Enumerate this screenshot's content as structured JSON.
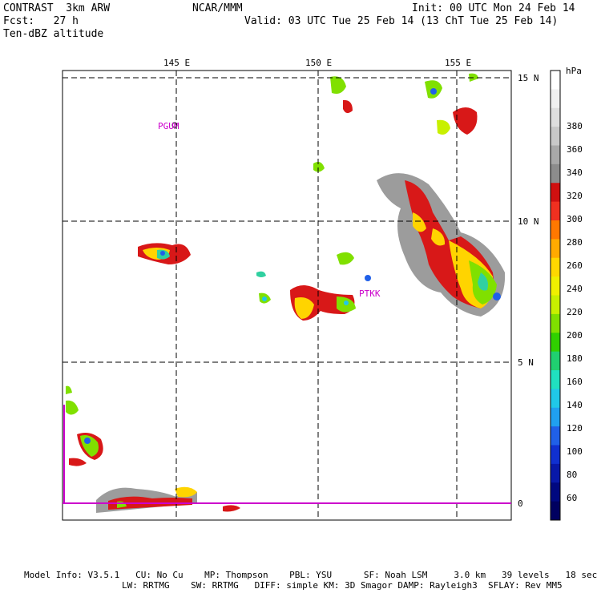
{
  "header": {
    "title_left": "CONTRAST  3km ARW",
    "fcst": "Fcst:   27 h",
    "field": "Ten-dBZ altitude",
    "center": "NCAR/MMM",
    "init": "Init: 00 UTC Mon 24 Feb 14",
    "valid": "Valid: 03 UTC Tue 25 Feb 14 (13 ChT Tue 25 Feb 14)"
  },
  "map": {
    "lon_labels": [
      "145 E",
      "150 E",
      "155 E"
    ],
    "lat_labels": [
      "15 N",
      "10 N",
      "5 N",
      "0"
    ],
    "stations": [
      "PGUM",
      "PTKK"
    ],
    "colors": {
      "station": "#cc00cc",
      "equator": "#cc00cc",
      "grid": "#000000"
    }
  },
  "colorbar": {
    "unit": "hPa",
    "levels": [
      "380",
      "360",
      "340",
      "320",
      "300",
      "280",
      "260",
      "240",
      "220",
      "200",
      "180",
      "160",
      "140",
      "120",
      "100",
      "80",
      "60"
    ],
    "colors": [
      "#ffffff",
      "#f0f0f0",
      "#dedede",
      "#c8c8c8",
      "#a8a8a8",
      "#8c8c8c",
      "#d01010",
      "#f03020",
      "#ff7800",
      "#ffaa00",
      "#ffd800",
      "#f0f000",
      "#c8f000",
      "#80e000",
      "#30d000",
      "#20d070",
      "#20e0c0",
      "#20c8e8",
      "#20a0f0",
      "#2060e8",
      "#1030d0",
      "#0818a8",
      "#000880",
      "#000060"
    ]
  },
  "footer": {
    "line1": "Model Info: V3.5.1   CU: No Cu    MP: Thompson    PBL: YSU      SF: Noah LSM     3.0 km   39 levels   18 sec",
    "line2": "LW: RRTMG    SW: RRTMG   DIFF: simple KM: 3D Smagor DAMP: Rayleigh3  SFLAY: Rev MM5"
  }
}
